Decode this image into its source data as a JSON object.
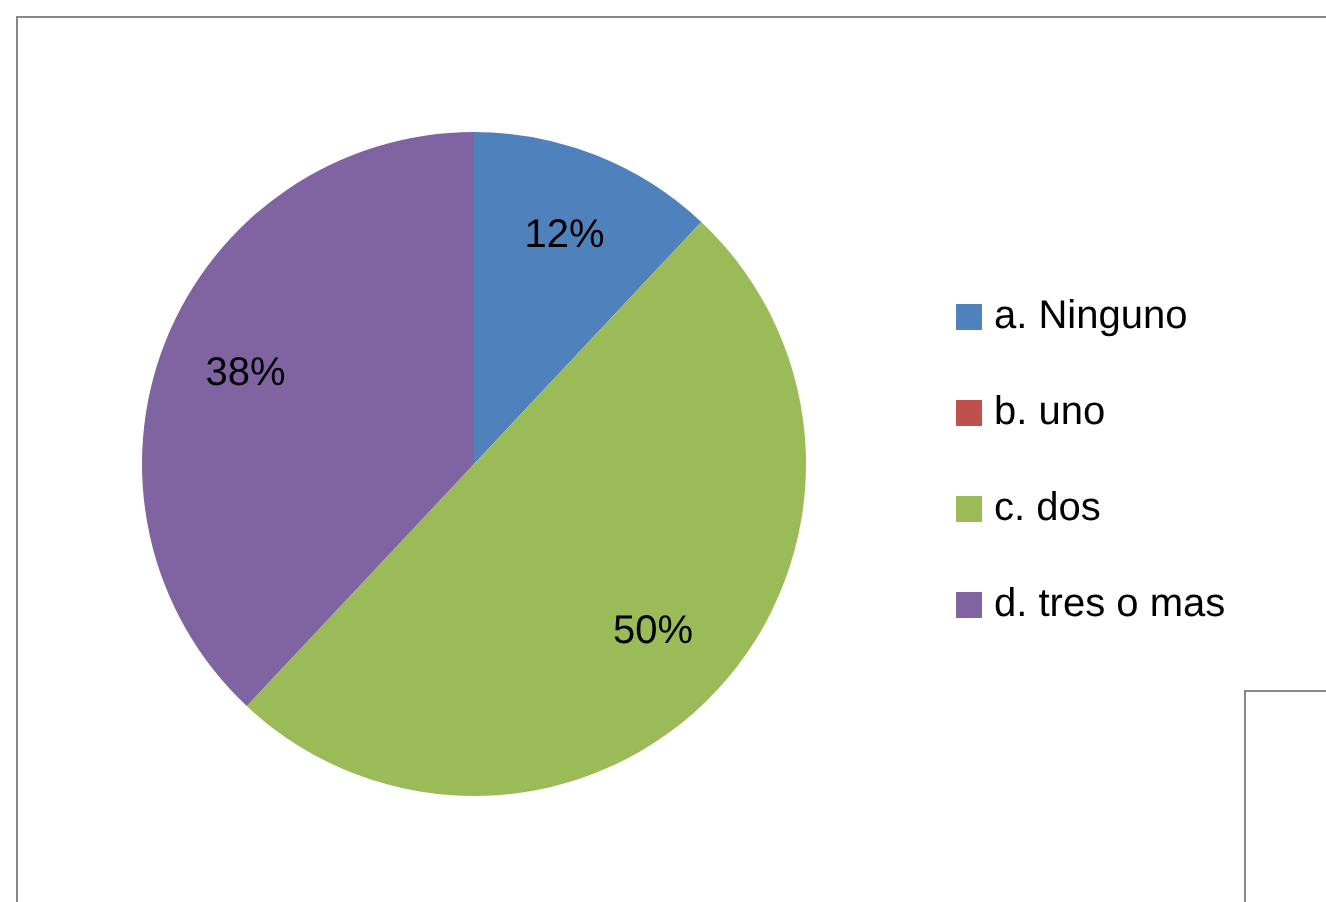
{
  "chart_data": {
    "type": "pie",
    "categories": [
      "a. Ninguno",
      "b. uno",
      "c. dos",
      "d. tres o mas"
    ],
    "values": [
      12,
      0,
      50,
      38
    ],
    "colors": [
      "#4f81bd",
      "#c0504d",
      "#9bbb59",
      "#8064a2"
    ],
    "value_labels": [
      "12%",
      null,
      "50%",
      "38%"
    ],
    "legend": "right"
  }
}
